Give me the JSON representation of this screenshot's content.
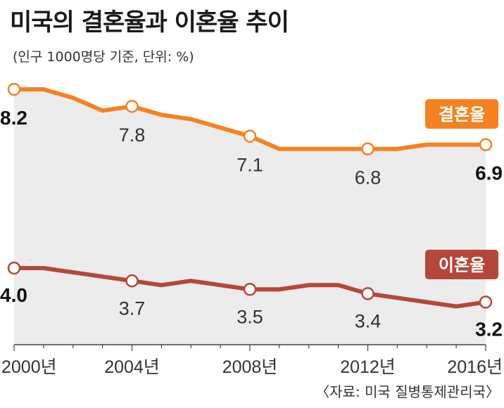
{
  "title": "미국의 결혼율과 이혼율 추이",
  "subtitle": "(인구 1000명당 기준, 단위: %)",
  "source": "〈자료: 미국 질병통제관리국〉",
  "colors": {
    "marriage": "#f58220",
    "divorce": "#b5473a",
    "area": "#ececec",
    "axis": "#444444"
  },
  "chart_data": {
    "type": "line",
    "title": "미국의 결혼율과 이혼율 추이",
    "xlabel": "",
    "ylabel": "",
    "x": [
      2000,
      2001,
      2002,
      2003,
      2004,
      2005,
      2006,
      2007,
      2008,
      2009,
      2010,
      2011,
      2012,
      2013,
      2014,
      2015,
      2016
    ],
    "x_ticks": [
      2000,
      2004,
      2008,
      2012,
      2016
    ],
    "x_tick_labels": [
      "2000년",
      "2004년",
      "2008년",
      "2012년",
      "2016년"
    ],
    "ylim": [
      2.2,
      8.2
    ],
    "grid": false,
    "series": [
      {
        "name": "결혼율",
        "values": [
          8.2,
          8.2,
          8.0,
          7.7,
          7.8,
          7.6,
          7.5,
          7.3,
          7.1,
          6.8,
          6.8,
          6.8,
          6.8,
          6.8,
          6.9,
          6.9,
          6.9
        ],
        "labels": [
          {
            "x": 2000,
            "text": "8.2",
            "bold": true
          },
          {
            "x": 2004,
            "text": "7.8",
            "bold": false
          },
          {
            "x": 2008,
            "text": "7.1",
            "bold": false
          },
          {
            "x": 2012,
            "text": "6.8",
            "bold": false
          },
          {
            "x": 2016,
            "text": "6.9",
            "bold": true
          }
        ]
      },
      {
        "name": "이혼율",
        "values": [
          4.0,
          4.0,
          3.9,
          3.8,
          3.7,
          3.6,
          3.7,
          3.6,
          3.5,
          3.5,
          3.6,
          3.6,
          3.4,
          3.3,
          3.2,
          3.1,
          3.2
        ],
        "labels": [
          {
            "x": 2000,
            "text": "4.0",
            "bold": true
          },
          {
            "x": 2004,
            "text": "3.7",
            "bold": false
          },
          {
            "x": 2008,
            "text": "3.5",
            "bold": false
          },
          {
            "x": 2012,
            "text": "3.4",
            "bold": false
          },
          {
            "x": 2016,
            "text": "3.2",
            "bold": true
          }
        ]
      }
    ]
  }
}
